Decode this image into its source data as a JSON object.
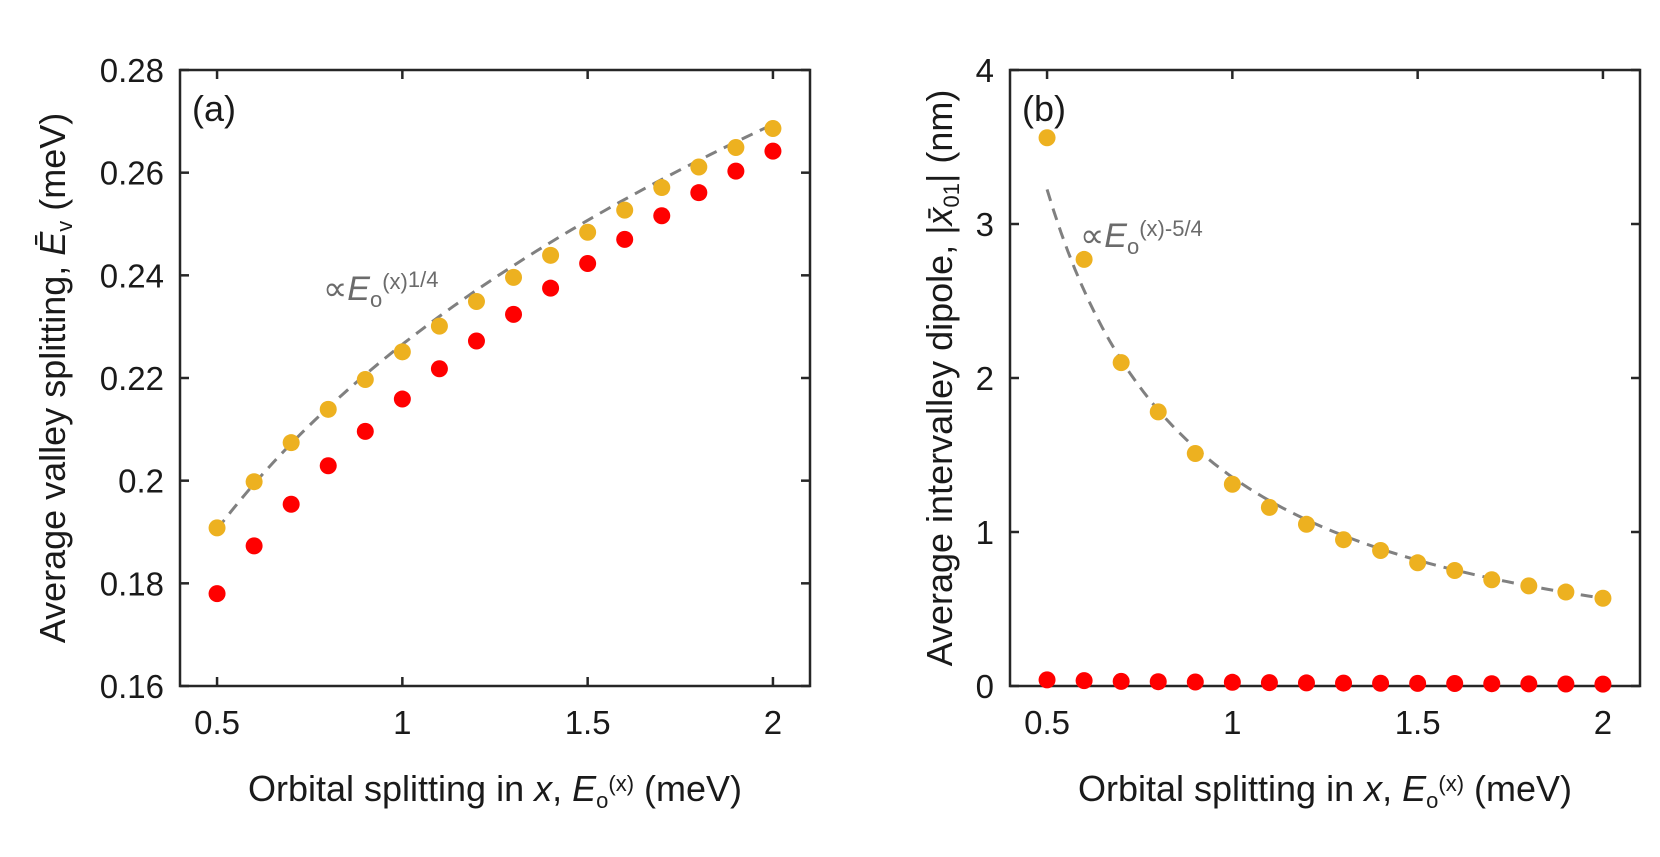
{
  "colors": {
    "series_yellow": "#EDB120",
    "series_red": "#FF0000",
    "fit_line": "#808080",
    "axis": "#262626"
  },
  "chart_data": [
    {
      "type": "scatter",
      "panel_label": "(a)",
      "xlabel": {
        "main": "Orbital splitting in ",
        "var": "x",
        "sep": ", ",
        "sym": "E",
        "sub": "o",
        "sup": "(x)",
        "unit": " (meV)"
      },
      "ylabel": {
        "main": "Average valley splitting, ",
        "sym": "Ē",
        "sub": "v",
        "unit": " (meV)"
      },
      "xlim": [
        0.4,
        2.1
      ],
      "ylim": [
        0.16,
        0.28
      ],
      "xticks": [
        0.5,
        1,
        1.5,
        2
      ],
      "xtick_labels": [
        "0.5",
        "1",
        "1.5",
        "2"
      ],
      "yticks": [
        0.16,
        0.18,
        0.2,
        0.22,
        0.24,
        0.26,
        0.28
      ],
      "ytick_labels": [
        "0.16",
        "0.18",
        "0.2",
        "0.22",
        "0.24",
        "0.26",
        "0.28"
      ],
      "fit_annotation": {
        "prefix": "∝",
        "sym": "E",
        "sub": "o",
        "sup1": "(x)",
        "sup2": "1/4"
      },
      "fit": {
        "style": "dashed",
        "law": "power",
        "exponent": 0.25,
        "anchor_x": 0.5,
        "anchor_y": 0.1905
      },
      "series": [
        {
          "name": "yellow",
          "x": [
            0.5,
            0.6,
            0.7,
            0.8,
            0.9,
            1.0,
            1.1,
            1.2,
            1.3,
            1.4,
            1.5,
            1.6,
            1.7,
            1.8,
            1.9,
            2.0
          ],
          "values": [
            0.1908,
            0.1998,
            0.2074,
            0.2139,
            0.2197,
            0.2251,
            0.2301,
            0.2349,
            0.2396,
            0.2439,
            0.2484,
            0.2527,
            0.2571,
            0.2611,
            0.2649,
            0.2686
          ]
        },
        {
          "name": "red",
          "x": [
            0.5,
            0.6,
            0.7,
            0.8,
            0.9,
            1.0,
            1.1,
            1.2,
            1.3,
            1.4,
            1.5,
            1.6,
            1.7,
            1.8,
            1.9,
            2.0
          ],
          "values": [
            0.178,
            0.1873,
            0.1954,
            0.2029,
            0.2096,
            0.2159,
            0.2218,
            0.2272,
            0.2324,
            0.2375,
            0.2423,
            0.247,
            0.2516,
            0.2561,
            0.2603,
            0.2642
          ]
        }
      ]
    },
    {
      "type": "scatter",
      "panel_label": "(b)",
      "xlabel": {
        "main": "Orbital splitting in ",
        "var": "x",
        "sep": ", ",
        "sym": "E",
        "sub": "o",
        "sup": "(x)",
        "unit": " (meV)"
      },
      "ylabel": {
        "main": "Average intervalley dipole, |",
        "sym": "x̄",
        "sub": "01",
        "unit": "| (nm)"
      },
      "xlim": [
        0.4,
        2.1
      ],
      "ylim": [
        0,
        4
      ],
      "xticks": [
        0.5,
        1,
        1.5,
        2
      ],
      "xtick_labels": [
        "0.5",
        "1",
        "1.5",
        "2"
      ],
      "yticks": [
        0,
        1,
        2,
        3,
        4
      ],
      "ytick_labels": [
        "0",
        "1",
        "2",
        "3",
        "4"
      ],
      "fit_annotation": {
        "prefix": "∝",
        "sym": "E",
        "sub": "o",
        "sup1": "(x)-5/4",
        "sup2": ""
      },
      "fit": {
        "style": "dashed",
        "law": "power",
        "exponent": -1.25,
        "anchor_x": 2.0,
        "anchor_y": 0.57
      },
      "series": [
        {
          "name": "yellow",
          "x": [
            0.5,
            0.6,
            0.7,
            0.8,
            0.9,
            1.0,
            1.1,
            1.2,
            1.3,
            1.4,
            1.5,
            1.6,
            1.7,
            1.8,
            1.9,
            2.0
          ],
          "values": [
            3.56,
            2.77,
            2.1,
            1.78,
            1.51,
            1.31,
            1.16,
            1.05,
            0.95,
            0.88,
            0.8,
            0.75,
            0.69,
            0.65,
            0.61,
            0.57
          ]
        },
        {
          "name": "red",
          "x": [
            0.5,
            0.6,
            0.7,
            0.8,
            0.9,
            1.0,
            1.1,
            1.2,
            1.3,
            1.4,
            1.5,
            1.6,
            1.7,
            1.8,
            1.9,
            2.0
          ],
          "values": [
            0.04,
            0.035,
            0.03,
            0.028,
            0.026,
            0.024,
            0.022,
            0.02,
            0.019,
            0.018,
            0.017,
            0.016,
            0.015,
            0.014,
            0.013,
            0.012
          ]
        }
      ]
    }
  ]
}
